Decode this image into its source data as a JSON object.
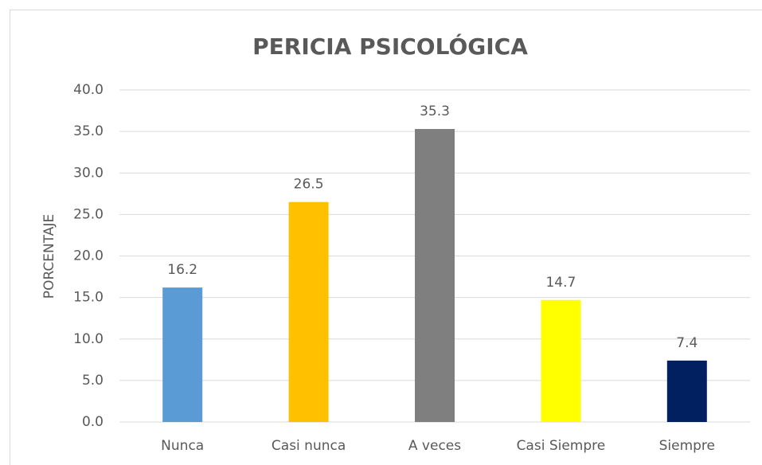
{
  "chart_data": {
    "type": "bar",
    "title": "PERICIA PSICOLÓGICA",
    "y_label": "PORCENTAJE",
    "categories": [
      "Nunca",
      "Casi nunca",
      "A veces",
      "Casi Siempre",
      "Siempre"
    ],
    "values": [
      16.2,
      26.5,
      35.3,
      14.7,
      7.4
    ],
    "colors": [
      "#5b9bd5",
      "#ffc000",
      "#7f7f7f",
      "#ffff00",
      "#002060"
    ],
    "ylim": [
      0,
      40
    ],
    "yticks": [
      {
        "value": 0,
        "label": "0.0"
      },
      {
        "value": 5,
        "label": "5.0"
      },
      {
        "value": 10,
        "label": "10.0"
      },
      {
        "value": 15,
        "label": "15.0"
      },
      {
        "value": 20,
        "label": "20.0"
      },
      {
        "value": 25,
        "label": "25.0"
      },
      {
        "value": 30,
        "label": "30.0"
      },
      {
        "value": 35,
        "label": "35.0"
      },
      {
        "value": 40,
        "label": "40.0"
      }
    ],
    "grid": true
  }
}
